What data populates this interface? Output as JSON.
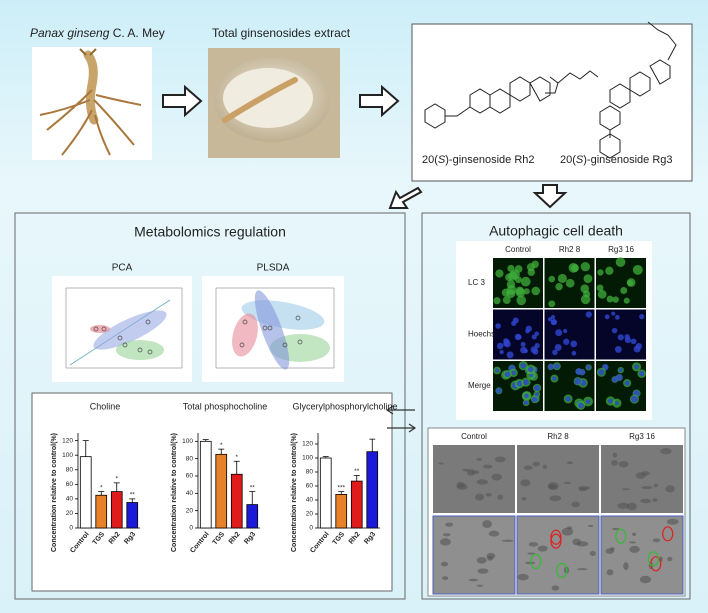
{
  "inputs": {
    "plant": {
      "species": "Panax ginseng",
      "authority": "C. A. Mey"
    },
    "extract": "Total ginsenosides extract"
  },
  "compounds": [
    {
      "prefix": "20(",
      "stereo": "S",
      "suffix": ")-ginsenoside Rh2"
    },
    {
      "prefix": "20(",
      "stereo": "S",
      "suffix": ")-ginsenoside Rg3"
    }
  ],
  "metabolomics": {
    "title": "Metabolomics regulation",
    "plots": [
      "PCA",
      "PLSDA"
    ]
  },
  "autophagy": {
    "title": "Autophagic cell death",
    "fluorescence": {
      "columns": [
        "Control",
        "Rh2 8",
        "Rg3 16"
      ],
      "rows": [
        "LC 3",
        "Hoechst",
        "Merge"
      ]
    },
    "tem": {
      "columns": [
        "Control",
        "Rh2 8",
        "Rg3 16"
      ]
    }
  },
  "chart_data": [
    {
      "type": "bar",
      "title": "Choline",
      "ylabel": "Concentration relative to control(%)",
      "categories": [
        "Control",
        "TGS",
        "Rh2",
        "Rg3"
      ],
      "values": [
        98,
        45,
        50,
        35
      ],
      "errors": [
        22,
        5,
        12,
        5
      ],
      "significance": [
        null,
        "*",
        "*",
        "**"
      ],
      "colors": [
        "#ffffff",
        "#e8822a",
        "#e01b1b",
        "#1a1ad8"
      ],
      "ylim": [
        0,
        125
      ],
      "yticks": [
        0,
        20,
        40,
        60,
        80,
        100,
        120
      ]
    },
    {
      "type": "bar",
      "title": "Total phosphocholine",
      "ylabel": "Concentration relative to control(%)",
      "categories": [
        "Control",
        "TGS",
        "Rh2",
        "Rg3"
      ],
      "values": [
        100,
        85,
        62,
        27
      ],
      "errors": [
        2,
        6,
        15,
        15
      ],
      "significance": [
        null,
        "*",
        "*",
        "**"
      ],
      "colors": [
        "#ffffff",
        "#e8822a",
        "#e01b1b",
        "#1a1ad8"
      ],
      "ylim": [
        0,
        105
      ],
      "yticks": [
        0,
        20,
        40,
        60,
        80,
        100
      ]
    },
    {
      "type": "bar",
      "title": "Glycerylphosphorylcholine",
      "ylabel": "Concentration relative to control(%)",
      "categories": [
        "Control",
        "TGS",
        "Rh2",
        "Rg3"
      ],
      "values": [
        100,
        48,
        67,
        109
      ],
      "errors": [
        2,
        4,
        8,
        18
      ],
      "significance": [
        null,
        "***",
        "**",
        null
      ],
      "colors": [
        "#ffffff",
        "#e8822a",
        "#e01b1b",
        "#1a1ad8"
      ],
      "ylim": [
        0,
        130
      ],
      "yticks": [
        0,
        20,
        40,
        60,
        80,
        100,
        120
      ]
    }
  ]
}
